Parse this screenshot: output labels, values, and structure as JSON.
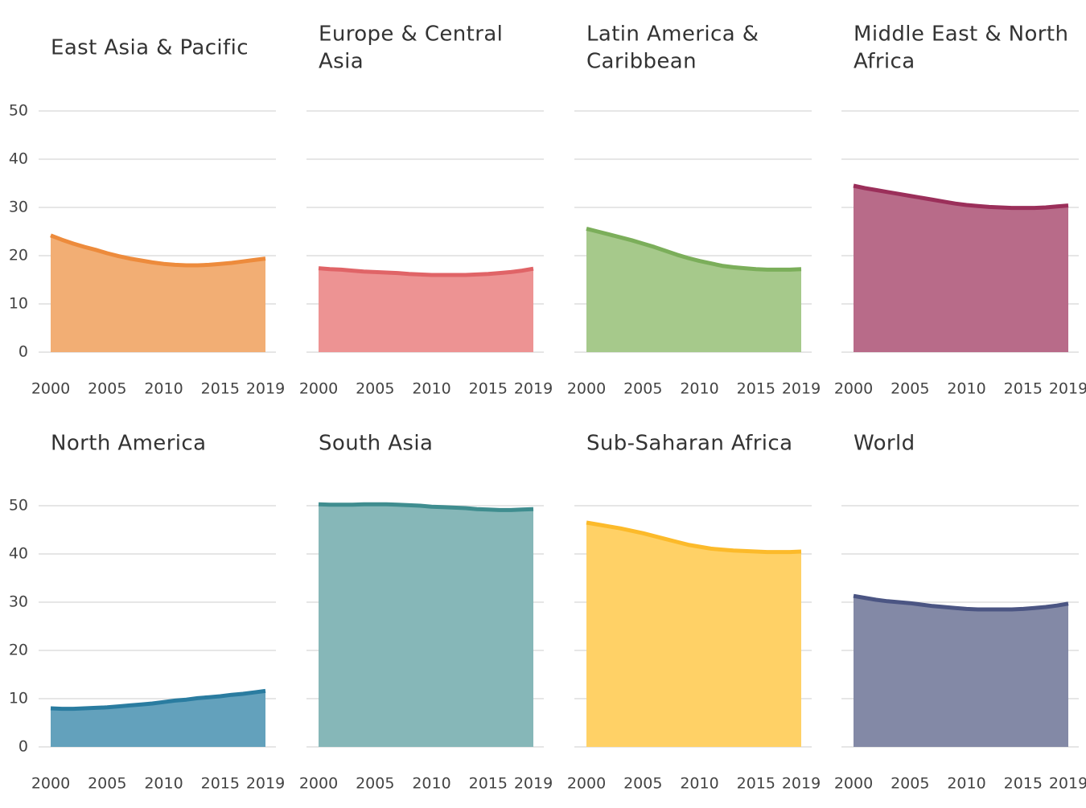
{
  "chart_data": {
    "type": "area",
    "facets": true,
    "x_ticks": [
      2000,
      2005,
      2010,
      2015,
      2019
    ],
    "y_ticks": [
      0,
      10,
      20,
      30,
      40,
      50
    ],
    "xlim": [
      2000,
      2019
    ],
    "ylim": [
      0,
      50
    ],
    "grid": true,
    "x": [
      2000,
      2001,
      2002,
      2003,
      2004,
      2005,
      2006,
      2007,
      2008,
      2009,
      2010,
      2011,
      2012,
      2013,
      2014,
      2015,
      2016,
      2017,
      2018,
      2019
    ],
    "series": [
      {
        "name": "East Asia & Pacific",
        "title_lines": [
          "East Asia & Pacific"
        ],
        "color": "#ED8B3C",
        "fill": "#F2AE74",
        "values": [
          24.2,
          23.3,
          22.5,
          21.8,
          21.2,
          20.5,
          19.9,
          19.4,
          19.0,
          18.6,
          18.3,
          18.1,
          18.0,
          18.0,
          18.1,
          18.3,
          18.5,
          18.8,
          19.1,
          19.4
        ]
      },
      {
        "name": "Europe & Central Asia",
        "title_lines": [
          "Europe & Central",
          "Asia"
        ],
        "color": "#E06467",
        "fill": "#ED9393",
        "values": [
          17.4,
          17.2,
          17.1,
          16.9,
          16.7,
          16.6,
          16.5,
          16.4,
          16.2,
          16.1,
          16.0,
          16.0,
          16.0,
          16.0,
          16.1,
          16.2,
          16.4,
          16.6,
          16.9,
          17.3
        ]
      },
      {
        "name": "Latin America & Caribbean",
        "title_lines": [
          "Latin America &",
          "Caribbean"
        ],
        "color": "#7BAE5A",
        "fill": "#A6C98B",
        "values": [
          25.6,
          25.0,
          24.4,
          23.8,
          23.2,
          22.5,
          21.8,
          21.0,
          20.2,
          19.5,
          18.9,
          18.4,
          17.9,
          17.6,
          17.4,
          17.2,
          17.1,
          17.1,
          17.1,
          17.2
        ]
      },
      {
        "name": "Middle East & North Africa",
        "title_lines": [
          "Middle East & North",
          "Africa"
        ],
        "color": "#9B2F5A",
        "fill": "#B86B89",
        "values": [
          34.5,
          34.0,
          33.6,
          33.2,
          32.8,
          32.4,
          32.0,
          31.6,
          31.2,
          30.8,
          30.5,
          30.3,
          30.1,
          30.0,
          29.9,
          29.9,
          29.9,
          30.0,
          30.2,
          30.4
        ]
      },
      {
        "name": "North America",
        "title_lines": [
          "North America"
        ],
        "color": "#2A7CA0",
        "fill": "#63A1BC",
        "values": [
          8.0,
          7.9,
          7.9,
          8.0,
          8.1,
          8.2,
          8.4,
          8.6,
          8.8,
          9.0,
          9.3,
          9.6,
          9.8,
          10.1,
          10.3,
          10.5,
          10.8,
          11.0,
          11.3,
          11.6
        ]
      },
      {
        "name": "South Asia",
        "title_lines": [
          "South Asia"
        ],
        "color": "#3F8D8F",
        "fill": "#86B7B8",
        "values": [
          50.3,
          50.2,
          50.2,
          50.2,
          50.3,
          50.3,
          50.3,
          50.2,
          50.1,
          50.0,
          49.8,
          49.7,
          49.6,
          49.5,
          49.3,
          49.2,
          49.1,
          49.1,
          49.2,
          49.3
        ]
      },
      {
        "name": "Sub-Saharan Africa",
        "title_lines": [
          "Sub-Saharan Africa"
        ],
        "color": "#FCBA2A",
        "fill": "#FFD166",
        "values": [
          46.5,
          46.1,
          45.7,
          45.3,
          44.8,
          44.3,
          43.7,
          43.1,
          42.5,
          41.9,
          41.5,
          41.1,
          40.9,
          40.7,
          40.6,
          40.5,
          40.4,
          40.4,
          40.4,
          40.5
        ]
      },
      {
        "name": "World",
        "title_lines": [
          "World"
        ],
        "color": "#4B5583",
        "fill": "#8389A6",
        "values": [
          31.3,
          30.9,
          30.5,
          30.2,
          30.0,
          29.8,
          29.5,
          29.2,
          29.0,
          28.8,
          28.6,
          28.5,
          28.5,
          28.5,
          28.5,
          28.6,
          28.8,
          29.0,
          29.3,
          29.7
        ]
      }
    ]
  }
}
